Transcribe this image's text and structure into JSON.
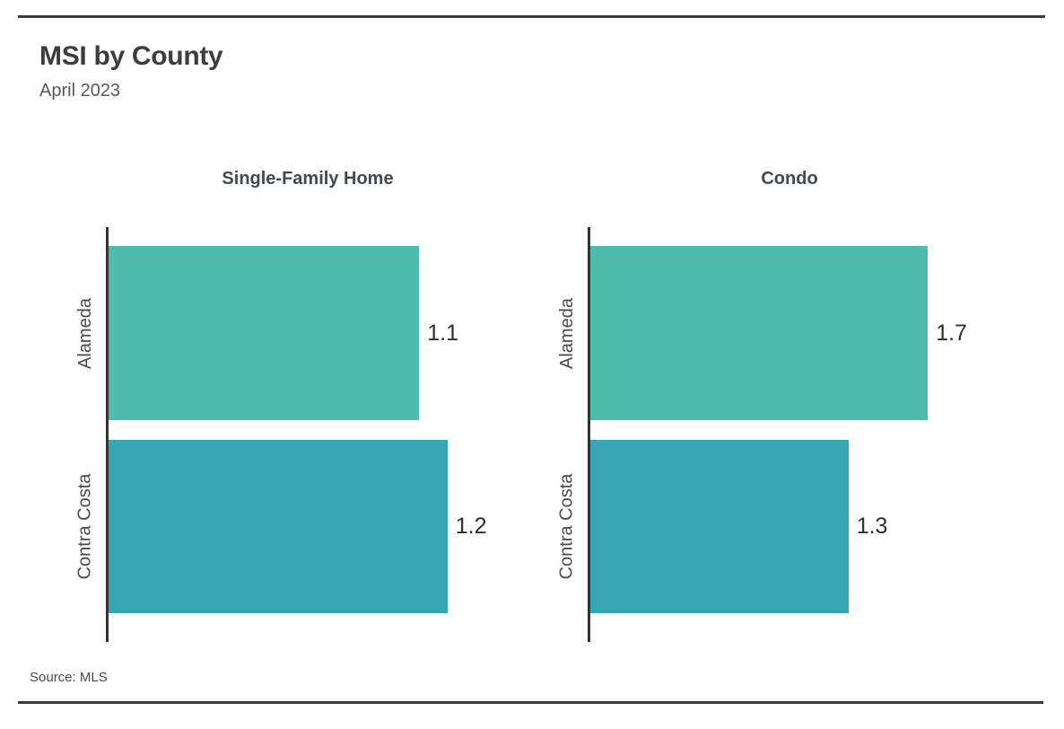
{
  "page": {
    "title": "MSI by County",
    "subtitle": "April 2023",
    "source": "Source: MLS"
  },
  "colors": {
    "alameda_bar": "#4dbcaa",
    "contra_costa_bar": "#38a5b3",
    "axis": "#333333",
    "rule": "#3b3b3b"
  },
  "chart_data": [
    {
      "type": "bar",
      "orientation": "horizontal",
      "title": "Single-Family Home",
      "categories": [
        "Alameda",
        "Contra Costa"
      ],
      "values": [
        1.1,
        1.2
      ],
      "value_labels": [
        "1.1",
        "1.2"
      ],
      "xlim": [
        0,
        1.42
      ],
      "grid": false,
      "legend": false
    },
    {
      "type": "bar",
      "orientation": "horizontal",
      "title": "Condo",
      "categories": [
        "Alameda",
        "Contra Costa"
      ],
      "values": [
        1.7,
        1.3
      ],
      "value_labels": [
        "1.7",
        "1.3"
      ],
      "xlim": [
        0,
        2.02
      ],
      "grid": false,
      "legend": false
    }
  ]
}
